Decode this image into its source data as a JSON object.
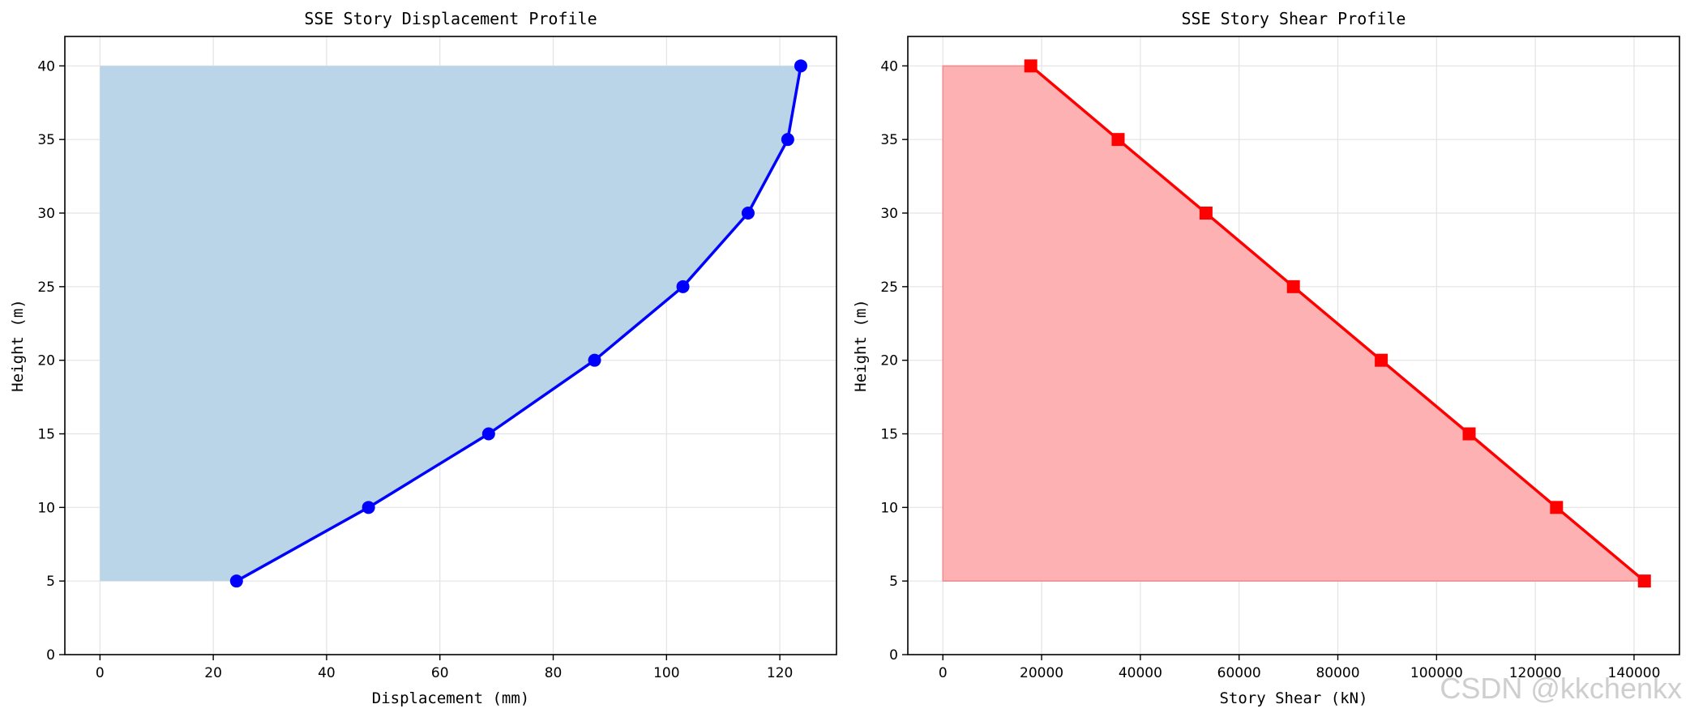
{
  "chart_data": [
    {
      "type": "line",
      "title": "SSE Story Displacement Profile",
      "xlabel": "Displacement (mm)",
      "ylabel": "Height (m)",
      "xlim": [
        -6.2,
        130.0
      ],
      "ylim": [
        0,
        42
      ],
      "xticks": [
        0,
        20,
        40,
        60,
        80,
        100,
        120
      ],
      "yticks": [
        0,
        5,
        10,
        15,
        20,
        25,
        30,
        35,
        40
      ],
      "grid": true,
      "line_color": "#0000ff",
      "fill_color": "#bad5e8",
      "marker": "circle",
      "fill": "area between x=0 and the curve",
      "series": [
        {
          "x": [
            24.1,
            47.4,
            68.6,
            87.3,
            102.9,
            114.4,
            121.4,
            123.7
          ],
          "y": [
            5,
            10,
            15,
            20,
            25,
            30,
            35,
            40
          ]
        }
      ]
    },
    {
      "type": "line",
      "title": "SSE Story Shear Profile",
      "xlabel": "Story Shear (kN)",
      "ylabel": "Height (m)",
      "xlim": [
        -7100,
        149200
      ],
      "ylim": [
        0,
        42
      ],
      "xticks": [
        0,
        20000,
        40000,
        60000,
        80000,
        100000,
        120000,
        140000
      ],
      "yticks": [
        0,
        5,
        10,
        15,
        20,
        25,
        30,
        35,
        40
      ],
      "grid": true,
      "line_color": "#ff0000",
      "fill_color": "#fdb1b3",
      "marker": "square",
      "fill": "area between x=0 and the curve",
      "series": [
        {
          "x": [
            142100,
            124300,
            106600,
            88800,
            71000,
            53300,
            35500,
            17800
          ],
          "y": [
            5,
            10,
            15,
            20,
            25,
            30,
            35,
            40
          ]
        }
      ]
    }
  ],
  "watermark": "CSDN @kkchenkx"
}
